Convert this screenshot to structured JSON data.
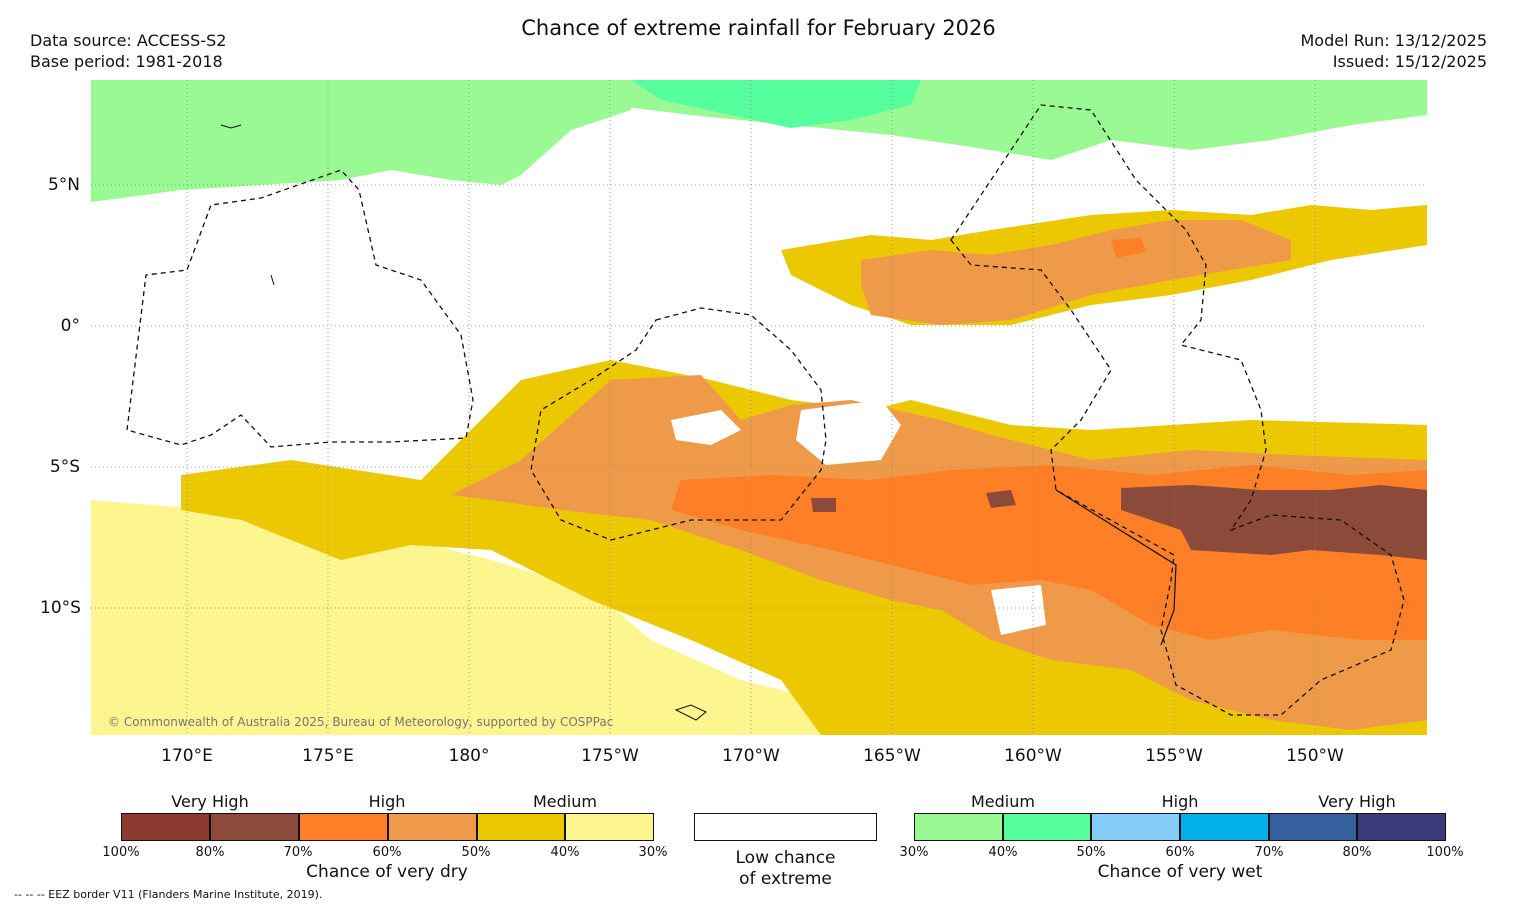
{
  "header": {
    "title": "Chance of extreme rainfall for February 2026",
    "data_source": "Data source: ACCESS-S2",
    "base_period": "Base period: 1981-2018",
    "model_run": "Model Run: 13/12/2025",
    "issued": "Issued: 15/12/2025"
  },
  "map": {
    "latitude_labels": [
      "5°N",
      "0°",
      "5°S",
      "10°S"
    ],
    "longitude_labels": [
      "170°E",
      "175°E",
      "180°",
      "175°W",
      "170°W",
      "165°W",
      "160°W",
      "155°W",
      "150°W"
    ],
    "copyright": "© Commonwealth of Australia 2025, Bureau of Meteorology, supported by COSPPac"
  },
  "legend": {
    "dry": {
      "categories": [
        "Very High",
        "High",
        "Medium"
      ],
      "ticks": [
        "100%",
        "80%",
        "70%",
        "60%",
        "50%",
        "40%",
        "30%"
      ],
      "caption": "Chance of very dry",
      "colors": [
        "#8b3a2f",
        "#8b4a3a",
        "#ff7f26",
        "#ee9a48",
        "#ecc800",
        "#fdf58e"
      ]
    },
    "neutral": {
      "caption_line1": "Low chance",
      "caption_line2": "of extreme"
    },
    "wet": {
      "categories": [
        "Medium",
        "High",
        "Very High"
      ],
      "ticks": [
        "30%",
        "40%",
        "50%",
        "60%",
        "70%",
        "80%",
        "100%"
      ],
      "caption": "Chance of very wet",
      "colors": [
        "#99fa93",
        "#55ff9e",
        "#87cdf9",
        "#00b0ea",
        "#365f9e",
        "#3c3a7b"
      ]
    }
  },
  "footer": {
    "eez_note": "-- -- -- EEZ border V11 (Flanders Marine Institute, 2019)."
  }
}
